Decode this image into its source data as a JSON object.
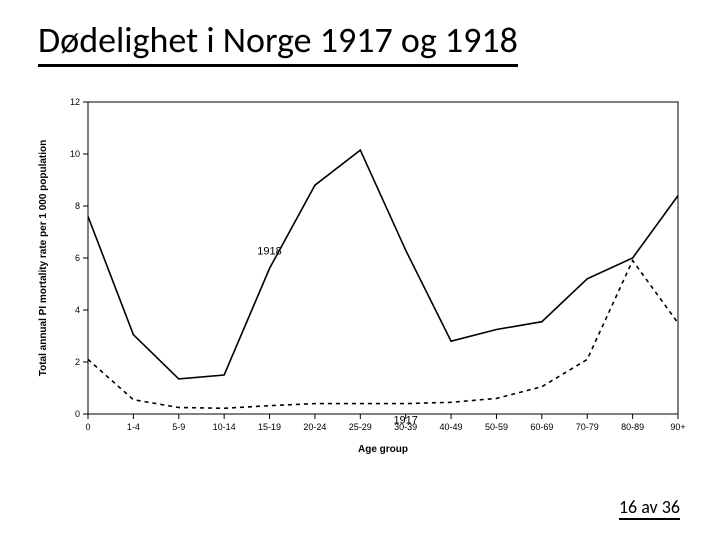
{
  "title": "Dødelighet i Norge 1917 og 1918",
  "footer": "16 av 36",
  "chart": {
    "type": "line",
    "background_color": "#ffffff",
    "categories": [
      "0",
      "1-4",
      "5-9",
      "10-14",
      "15-19",
      "20-24",
      "25-29",
      "30-39",
      "40-49",
      "50-59",
      "60-69",
      "70-79",
      "80-89",
      "90+"
    ],
    "xlabel": "Age group",
    "ylabel": "Total annual PI mortality rate per 1 000 population",
    "ylim": [
      0,
      12
    ],
    "ytick_step": 2,
    "label_fontsize": 10,
    "tick_fontsize": 9,
    "annotation_fontsize": 11,
    "line_width": 1.6,
    "series": [
      {
        "name": "1917",
        "dash": "4,4",
        "color": "#000000",
        "values": [
          2.1,
          0.55,
          0.25,
          0.22,
          0.32,
          0.4,
          0.4,
          0.4,
          0.45,
          0.6,
          1.05,
          2.1,
          5.9,
          3.5
        ],
        "annotation_index": 7,
        "annotation_dy": 20
      },
      {
        "name": "1918",
        "dash": "none",
        "color": "#000000",
        "values": [
          7.6,
          3.05,
          1.35,
          1.5,
          5.6,
          8.8,
          10.15,
          6.3,
          2.8,
          3.25,
          3.55,
          5.2,
          6.0,
          8.4
        ],
        "annotation_index": 4,
        "annotation_dy": -14
      }
    ]
  }
}
